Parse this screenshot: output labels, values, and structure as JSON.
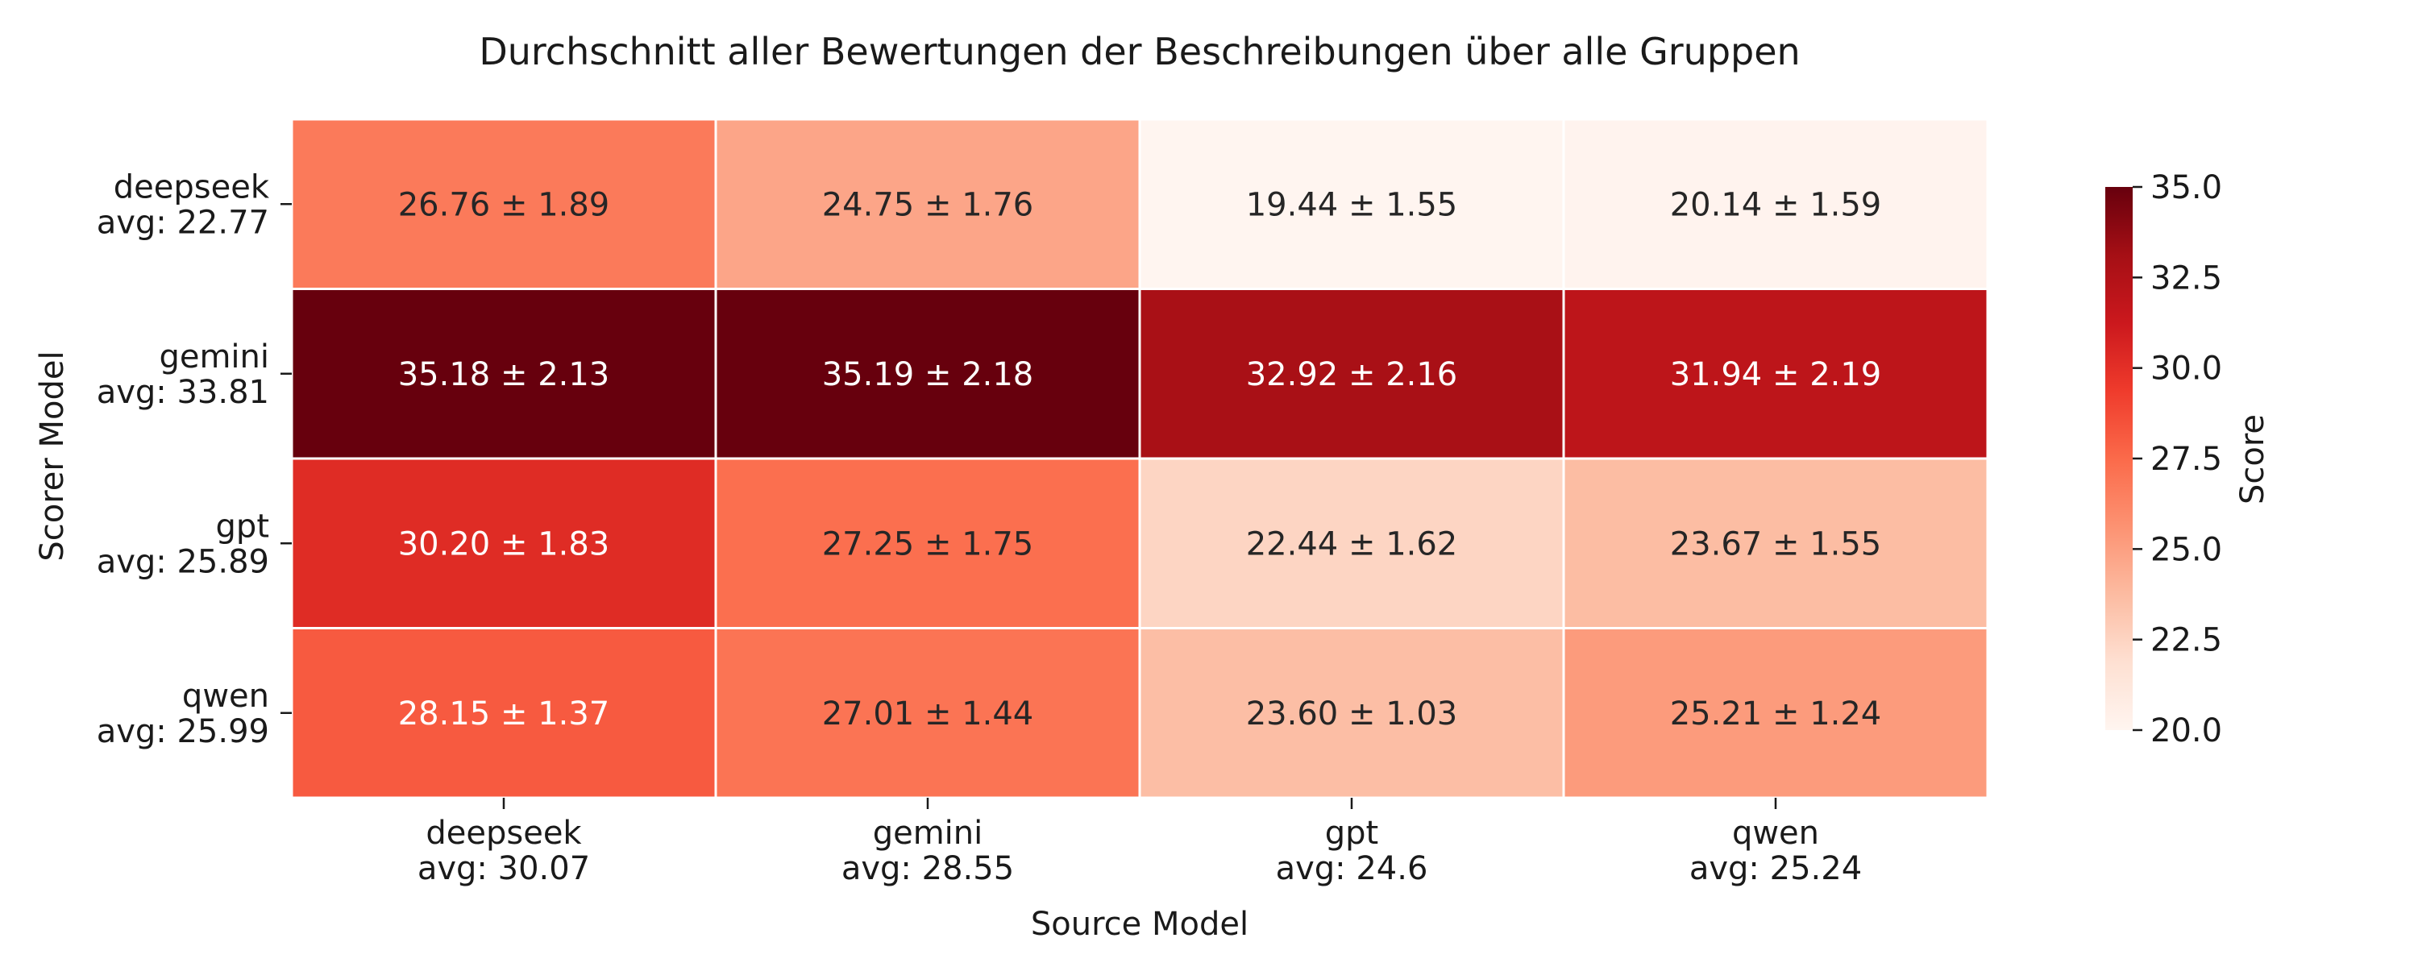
{
  "chart_data": {
    "type": "heatmap",
    "title": "Durchschnitt aller Bewertungen der Beschreibungen über alle Gruppen",
    "xlabel": "Source Model",
    "ylabel": "Scorer Model",
    "colorbar_label": "Score",
    "color_range": [
      20.0,
      35.0
    ],
    "colorbar_ticks": [
      "20.0",
      "22.5",
      "25.0",
      "27.5",
      "30.0",
      "32.5",
      "35.0"
    ],
    "colormap_stops": [
      "#fff5f0",
      "#fee0d2",
      "#fcbba1",
      "#fc9272",
      "#fb6a4a",
      "#ef3b2c",
      "#cb181d",
      "#a50f15",
      "#67000d"
    ],
    "x_categories": [
      {
        "name": "deepseek",
        "avg": "avg: 30.07"
      },
      {
        "name": "gemini",
        "avg": "avg: 28.55"
      },
      {
        "name": "gpt",
        "avg": "avg: 24.6"
      },
      {
        "name": "qwen",
        "avg": "avg: 25.24"
      }
    ],
    "y_categories": [
      {
        "name": "deepseek",
        "avg": "avg: 22.77"
      },
      {
        "name": "gemini",
        "avg": "avg: 33.81"
      },
      {
        "name": "gpt",
        "avg": "avg: 25.89"
      },
      {
        "name": "qwen",
        "avg": "avg: 25.99"
      }
    ],
    "values": [
      [
        26.76,
        24.75,
        19.44,
        20.14
      ],
      [
        35.18,
        35.19,
        32.92,
        31.94
      ],
      [
        30.2,
        27.25,
        22.44,
        23.67
      ],
      [
        28.15,
        27.01,
        23.6,
        25.21
      ]
    ],
    "errors": [
      [
        1.89,
        1.76,
        1.55,
        1.59
      ],
      [
        2.13,
        2.18,
        2.16,
        2.19
      ],
      [
        1.83,
        1.75,
        1.62,
        1.55
      ],
      [
        1.37,
        1.44,
        1.03,
        1.24
      ]
    ],
    "cell_labels": [
      [
        "26.76 ± 1.89",
        "24.75 ± 1.76",
        "19.44 ± 1.55",
        "20.14 ± 1.59"
      ],
      [
        "35.18 ± 2.13",
        "35.19 ± 2.18",
        "32.92 ± 2.16",
        "31.94 ± 2.19"
      ],
      [
        "30.20 ± 1.83",
        "27.25 ± 1.75",
        "22.44 ± 1.62",
        "23.67 ± 1.55"
      ],
      [
        "28.15 ± 1.37",
        "27.01 ± 1.44",
        "23.60 ± 1.03",
        "25.21 ± 1.24"
      ]
    ]
  }
}
